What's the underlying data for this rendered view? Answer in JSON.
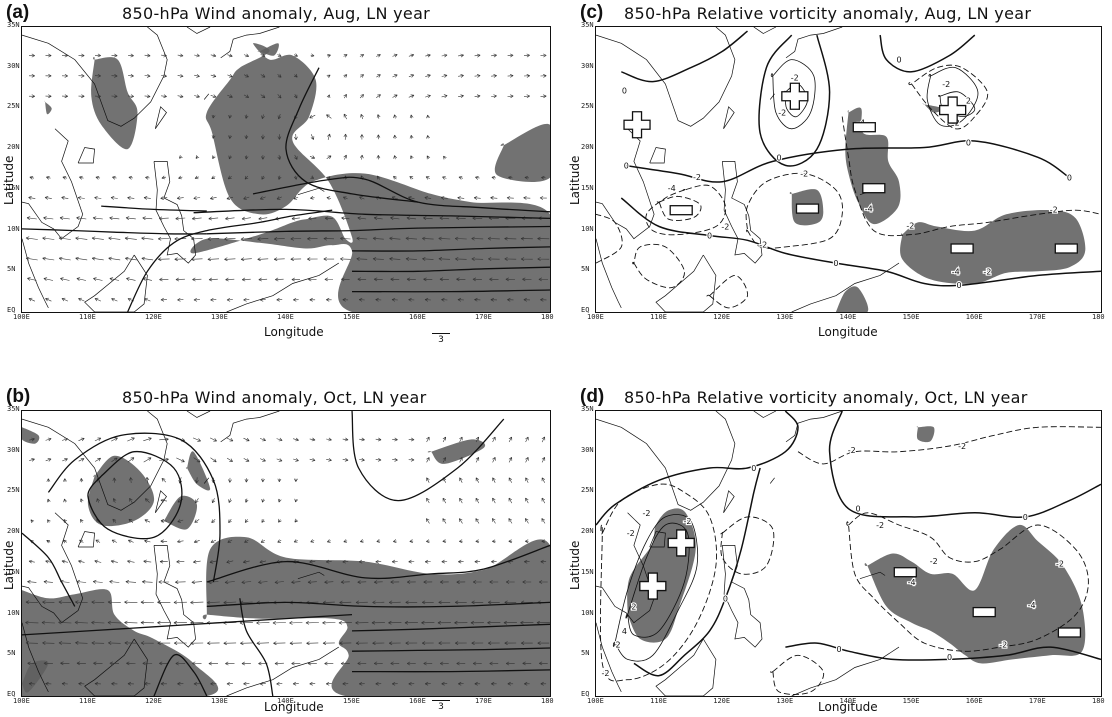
{
  "figure": {
    "panels": [
      {
        "id": "a",
        "letter": "(a)",
        "title": "850-hPa Wind anomaly, Aug, LN year",
        "kind": "wind",
        "x_ticks": [
          "100E",
          "110E",
          "120E",
          "130E",
          "140E",
          "150E",
          "160E",
          "170E",
          "180"
        ],
        "y_ticks": [
          "EQ",
          "5N",
          "10N",
          "15N",
          "20N",
          "25N",
          "30N",
          "35N"
        ],
        "xlabel": "Longitude",
        "ylabel": "Latitude",
        "vector_scale": "3"
      },
      {
        "id": "b",
        "letter": "(b)",
        "title": "850-hPa Wind anomaly, Oct, LN year",
        "kind": "wind",
        "x_ticks": [
          "100E",
          "110E",
          "120E",
          "130E",
          "140E",
          "150E",
          "160E",
          "170E",
          "180"
        ],
        "y_ticks": [
          "EQ",
          "5N",
          "10N",
          "15N",
          "20N",
          "25N",
          "30N",
          "35N"
        ],
        "xlabel": "Longitude",
        "ylabel": "Latitude",
        "vector_scale": "3"
      },
      {
        "id": "c",
        "letter": "(c)",
        "title": "850-hPa Relative vorticity anomaly, Aug, LN year",
        "kind": "vorticity",
        "x_ticks": [
          "100E",
          "110E",
          "120E",
          "130E",
          "140E",
          "150E",
          "160E",
          "170E",
          "180"
        ],
        "y_ticks": [
          "EQ",
          "5N",
          "10N",
          "15N",
          "20N",
          "25N",
          "30N",
          "35N"
        ],
        "xlabel": "Longitude",
        "ylabel": "Latitude",
        "vector_scale": "",
        "contour_labels": [
          {
            "text": "-2",
            "lon": 131.5,
            "lat": 28.8
          },
          {
            "text": "4",
            "lon": 131.8,
            "lat": 25.3
          },
          {
            "text": "-2",
            "lon": 129.5,
            "lat": 24.5
          },
          {
            "text": "-2",
            "lon": 155.5,
            "lat": 28.0
          },
          {
            "text": "2",
            "lon": 159.0,
            "lat": 26.0
          },
          {
            "text": "-2",
            "lon": 157.0,
            "lat": 23.3
          },
          {
            "text": "-4",
            "lon": 142.0,
            "lat": 23.3
          },
          {
            "text": "-4",
            "lon": 112.0,
            "lat": 15.2
          },
          {
            "text": "-2",
            "lon": 116.0,
            "lat": 16.6
          },
          {
            "text": "-2",
            "lon": 120.5,
            "lat": 10.5
          },
          {
            "text": "-2",
            "lon": 133.0,
            "lat": 17.0
          },
          {
            "text": "-2",
            "lon": 126.5,
            "lat": 8.3
          },
          {
            "text": "-4",
            "lon": 143.2,
            "lat": 12.7
          },
          {
            "text": "-2",
            "lon": 149.8,
            "lat": 10.6
          },
          {
            "text": "-2",
            "lon": 172.5,
            "lat": 12.6
          },
          {
            "text": "-4",
            "lon": 157.0,
            "lat": 5.0
          },
          {
            "text": "-2",
            "lon": 162.0,
            "lat": 5.0
          },
          {
            "text": "0",
            "lon": 104.5,
            "lat": 27.2
          },
          {
            "text": "0",
            "lon": 129.0,
            "lat": 19.0
          },
          {
            "text": "0",
            "lon": 148.0,
            "lat": 31.0
          },
          {
            "text": "0",
            "lon": 104.8,
            "lat": 18.0
          },
          {
            "text": "0",
            "lon": 118.0,
            "lat": 9.4
          },
          {
            "text": "0",
            "lon": 138.0,
            "lat": 6.0
          },
          {
            "text": "0",
            "lon": 159.0,
            "lat": 20.8
          },
          {
            "text": "0",
            "lon": 175.0,
            "lat": 16.5
          },
          {
            "text": "0",
            "lon": 157.5,
            "lat": 3.3
          }
        ],
        "signs": [
          {
            "sign": "+",
            "lon": 106.5,
            "lat": 23.0
          },
          {
            "sign": "+",
            "lon": 131.5,
            "lat": 26.5
          },
          {
            "sign": "+",
            "lon": 156.5,
            "lat": 24.8
          },
          {
            "sign": "-",
            "lon": 113.5,
            "lat": 12.5
          },
          {
            "sign": "-",
            "lon": 133.5,
            "lat": 12.7
          },
          {
            "sign": "-",
            "lon": 142.5,
            "lat": 22.7
          },
          {
            "sign": "-",
            "lon": 144.0,
            "lat": 15.2
          },
          {
            "sign": "-",
            "lon": 158.0,
            "lat": 7.8
          },
          {
            "sign": "-",
            "lon": 174.5,
            "lat": 7.8
          }
        ]
      },
      {
        "id": "d",
        "letter": "(d)",
        "title": "850-hPa Relative vorticity anomaly, Oct, LN year",
        "kind": "vorticity",
        "x_ticks": [
          "100E",
          "110E",
          "120E",
          "130E",
          "140E",
          "150E",
          "160E",
          "170E",
          "180"
        ],
        "y_ticks": [
          "EQ",
          "5N",
          "10N",
          "15N",
          "20N",
          "25N",
          "30N",
          "35N"
        ],
        "xlabel": "Longitude",
        "ylabel": "Latitude",
        "vector_scale": "",
        "contour_labels": [
          {
            "text": "-2",
            "lon": 140.5,
            "lat": 30.2
          },
          {
            "text": "-2",
            "lon": 158.0,
            "lat": 30.7
          },
          {
            "text": "-2",
            "lon": 105.5,
            "lat": 20.0
          },
          {
            "text": "-2",
            "lon": 108.0,
            "lat": 22.5
          },
          {
            "text": "-2",
            "lon": 114.5,
            "lat": 21.5
          },
          {
            "text": "-2",
            "lon": 145.0,
            "lat": 21.0
          },
          {
            "text": "-2",
            "lon": 153.5,
            "lat": 16.6
          },
          {
            "text": "-2",
            "lon": 173.5,
            "lat": 16.3
          },
          {
            "text": "-2",
            "lon": 164.5,
            "lat": 6.3
          },
          {
            "text": "-2",
            "lon": 101.5,
            "lat": 2.8
          },
          {
            "text": "-4",
            "lon": 150.0,
            "lat": 14.0
          },
          {
            "text": "-4",
            "lon": 169.0,
            "lat": 11.2
          },
          {
            "text": "2",
            "lon": 103.5,
            "lat": 6.3
          },
          {
            "text": "2",
            "lon": 106.0,
            "lat": 11.0
          },
          {
            "text": "4",
            "lon": 104.5,
            "lat": 8.0
          },
          {
            "text": "0",
            "lon": 125.0,
            "lat": 28.0
          },
          {
            "text": "0",
            "lon": 141.5,
            "lat": 23.0
          },
          {
            "text": "0",
            "lon": 168.0,
            "lat": 22.0
          },
          {
            "text": "0",
            "lon": 120.5,
            "lat": 12.0
          },
          {
            "text": "0",
            "lon": 138.5,
            "lat": 5.8
          },
          {
            "text": "0",
            "lon": 156.0,
            "lat": 4.8
          }
        ],
        "signs": [
          {
            "sign": "+",
            "lon": 113.5,
            "lat": 18.8
          },
          {
            "sign": "+",
            "lon": 109.0,
            "lat": 13.5
          },
          {
            "sign": "-",
            "lon": 149.0,
            "lat": 15.2
          },
          {
            "sign": "-",
            "lon": 161.5,
            "lat": 10.3
          },
          {
            "sign": "-",
            "lon": 175.0,
            "lat": 7.8
          }
        ]
      }
    ]
  },
  "colors": {
    "shading": "#5e5e5e",
    "line": "#111111",
    "background": "#ffffff"
  }
}
